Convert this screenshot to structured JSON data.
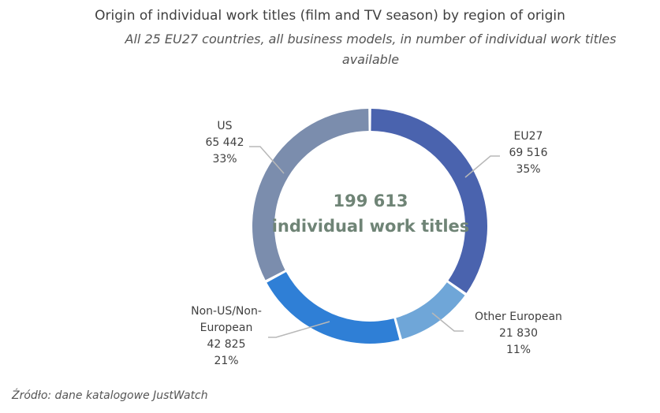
{
  "chart_data": {
    "type": "pie",
    "variant": "donut",
    "title": "Origin of individual work titles (film and TV season) by region of origin",
    "subtitle": "All 25 EU27 countries, all business models, in number of individual work titles available",
    "center": {
      "value": "199 613",
      "label": "individual work titles"
    },
    "total": 199613,
    "slices": [
      {
        "name": "EU27",
        "value": 69516,
        "value_label": "69 516",
        "percent": "35%",
        "color": "#4a63ae"
      },
      {
        "name": "Other European",
        "value": 21830,
        "value_label": "21 830",
        "percent": "11%",
        "color": "#6fa6d8"
      },
      {
        "name": "Non-US/Non-European",
        "name_lines": [
          "Non-US/Non-",
          "European"
        ],
        "value": 42825,
        "value_label": "42 825",
        "percent": "21%",
        "color": "#2f7fd6"
      },
      {
        "name": "US",
        "value": 65442,
        "value_label": "65 442",
        "percent": "33%",
        "color": "#7b8dad"
      }
    ]
  },
  "source": "Źródło: dane katalogowe JustWatch"
}
